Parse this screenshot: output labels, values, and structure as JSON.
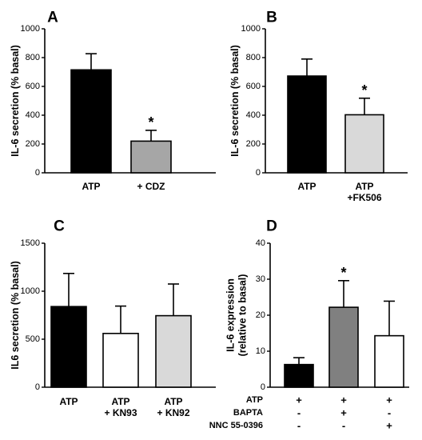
{
  "chart_data": [
    {
      "panel": "A",
      "type": "bar",
      "ylabel": "IL-6 secretion (% basal)",
      "ylim": [
        0,
        1000
      ],
      "yticks": [
        "0",
        "200",
        "400",
        "600",
        "800",
        "1000"
      ],
      "categories": [
        "ATP",
        "+ CDZ"
      ],
      "values": [
        715,
        220
      ],
      "errors": [
        112,
        75
      ],
      "bar_colors": [
        "#000000",
        "#a6a6a6"
      ],
      "significance": [
        "",
        "*"
      ]
    },
    {
      "panel": "B",
      "type": "bar",
      "ylabel": "IL-6 secretion (% basal)",
      "ylim": [
        0,
        1000
      ],
      "yticks": [
        "0",
        "200",
        "400",
        "600",
        "800",
        "1000"
      ],
      "categories": [
        "ATP",
        "ATP\n+FK506"
      ],
      "values": [
        672,
        403
      ],
      "errors": [
        118,
        115
      ],
      "bar_colors": [
        "#000000",
        "#d9d9d9"
      ],
      "significance": [
        "",
        "*"
      ]
    },
    {
      "panel": "C",
      "type": "bar",
      "ylabel": "IL6 secretion (% basal)",
      "ylim": [
        0,
        1500
      ],
      "yticks": [
        "0",
        "500",
        "1000",
        "1500"
      ],
      "categories": [
        "ATP",
        "ATP\n+ KN93",
        "ATP\n+ KN92"
      ],
      "values": [
        840,
        560,
        745
      ],
      "errors": [
        345,
        285,
        330
      ],
      "bar_colors": [
        "#000000",
        "#ffffff",
        "#d9d9d9"
      ],
      "significance": [
        "",
        "",
        ""
      ]
    },
    {
      "panel": "D",
      "type": "bar",
      "ylabel": "IL-6 expression\n(relative to basal)",
      "ylim": [
        0,
        40
      ],
      "yticks": [
        "0",
        "10",
        "20",
        "30",
        "40"
      ],
      "categories": [
        "",
        "",
        ""
      ],
      "values": [
        6.3,
        22.2,
        14.3
      ],
      "errors": [
        1.9,
        7.4,
        9.6
      ],
      "bar_colors": [
        "#000000",
        "#808080",
        "#ffffff"
      ],
      "significance": [
        "",
        "*",
        ""
      ],
      "condition_table": {
        "rows": [
          {
            "label": "ATP",
            "signs": [
              "+",
              "+",
              "+"
            ]
          },
          {
            "label": "BAPTA",
            "signs": [
              "-",
              "+",
              "-"
            ]
          },
          {
            "label": "NNC 55-0396",
            "signs": [
              "-",
              "-",
              "+"
            ]
          }
        ]
      }
    }
  ]
}
